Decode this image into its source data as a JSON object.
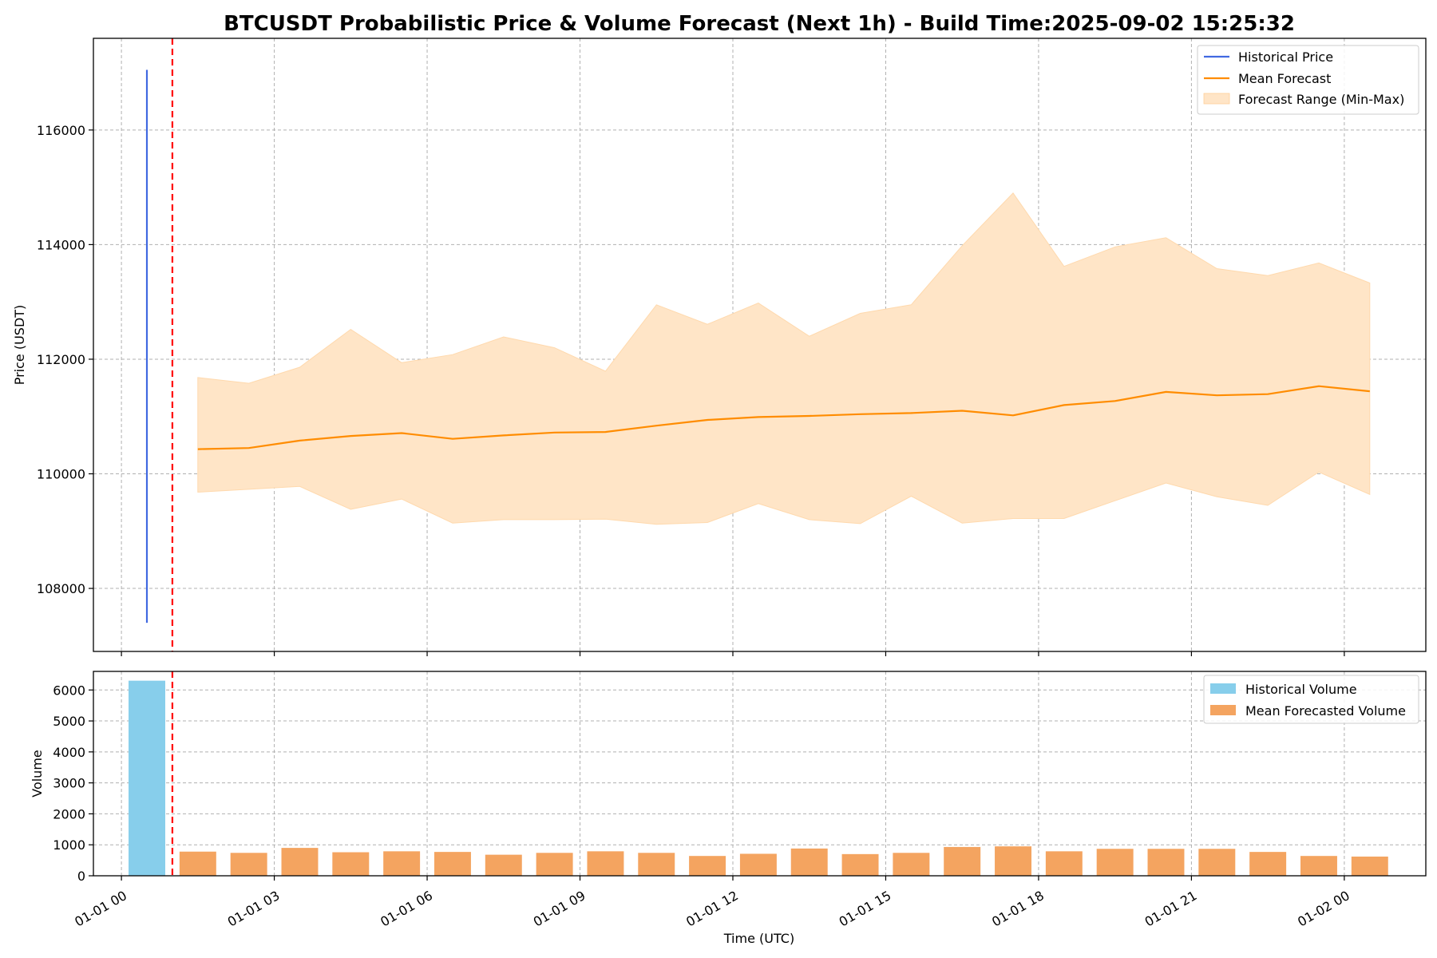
{
  "chart_data": [
    {
      "type": "line",
      "title": "BTCUSDT Probabilistic Price & Volume Forecast (Next 1h) - Build Time:2025-09-02 15:25:32",
      "ylabel": "Price (USDT)",
      "ylim": [
        106900,
        117600
      ],
      "yticks": [
        108000,
        110000,
        112000,
        114000,
        116000
      ],
      "grid": true,
      "legend_position": "top-right",
      "forecast_start_x": 1.0,
      "historical": {
        "name": "Historical Price",
        "color": "#4169e1",
        "x": 0.5,
        "low": 107400,
        "high": 117050
      },
      "mean_forecast": {
        "name": "Mean Forecast",
        "color": "#ff8c00",
        "x": [
          1.5,
          2.5,
          3.5,
          4.5,
          5.5,
          6.5,
          7.5,
          8.5,
          9.5,
          10.5,
          11.5,
          12.5,
          13.5,
          14.5,
          15.5,
          16.5,
          17.5,
          18.5,
          19.5,
          20.5,
          21.5,
          22.5,
          23.5,
          24.5
        ],
        "values": [
          110430,
          110450,
          110580,
          110660,
          110710,
          110610,
          110670,
          110720,
          110730,
          110840,
          110940,
          110990,
          111010,
          111040,
          111060,
          111100,
          111020,
          111200,
          111270,
          111430,
          111370,
          111390,
          111530,
          111440
        ]
      },
      "range": {
        "name": "Forecast Range (Min-Max)",
        "color": "#ffe5c7",
        "min": [
          109680,
          109730,
          109780,
          109380,
          109560,
          109140,
          109200,
          109200,
          109210,
          109120,
          109150,
          109480,
          109200,
          109130,
          109610,
          109140,
          109220,
          109220,
          109530,
          109840,
          109600,
          109450,
          110030,
          109640
        ],
        "max": [
          111680,
          111580,
          111860,
          112520,
          111940,
          112080,
          112390,
          112200,
          111790,
          112950,
          112610,
          112980,
          112400,
          112800,
          112950,
          113980,
          114900,
          113620,
          113960,
          114120,
          113580,
          113460,
          113680,
          113330
        ]
      }
    },
    {
      "type": "bar",
      "xlabel": "Time (UTC)",
      "ylabel": "Volume",
      "ylim": [
        0,
        6600
      ],
      "yticks": [
        0,
        1000,
        2000,
        3000,
        4000,
        5000,
        6000
      ],
      "grid": true,
      "legend_position": "top-right",
      "xlim": [
        -0.55,
        25.6
      ],
      "xticks": [
        {
          "x": 0,
          "label": "01-01 00"
        },
        {
          "x": 3,
          "label": "01-01 03"
        },
        {
          "x": 6,
          "label": "01-01 06"
        },
        {
          "x": 9,
          "label": "01-01 09"
        },
        {
          "x": 12,
          "label": "01-01 12"
        },
        {
          "x": 15,
          "label": "01-01 15"
        },
        {
          "x": 18,
          "label": "01-01 18"
        },
        {
          "x": 21,
          "label": "01-01 21"
        },
        {
          "x": 24,
          "label": "01-02 00"
        }
      ],
      "historical": {
        "name": "Historical Volume",
        "color": "#87ceeb",
        "x": 0.5,
        "value": 6300
      },
      "forecast": {
        "name": "Mean Forecasted Volume",
        "color": "#f4a460",
        "x": [
          1.5,
          2.5,
          3.5,
          4.5,
          5.5,
          6.5,
          7.5,
          8.5,
          9.5,
          10.5,
          11.5,
          12.5,
          13.5,
          14.5,
          15.5,
          16.5,
          17.5,
          18.5,
          19.5,
          20.5,
          21.5,
          22.5,
          23.5,
          24.5
        ],
        "values": [
          780,
          740,
          900,
          760,
          790,
          770,
          680,
          740,
          790,
          740,
          640,
          710,
          880,
          700,
          740,
          930,
          950,
          790,
          870,
          870,
          870,
          770,
          640,
          620
        ]
      }
    }
  ]
}
